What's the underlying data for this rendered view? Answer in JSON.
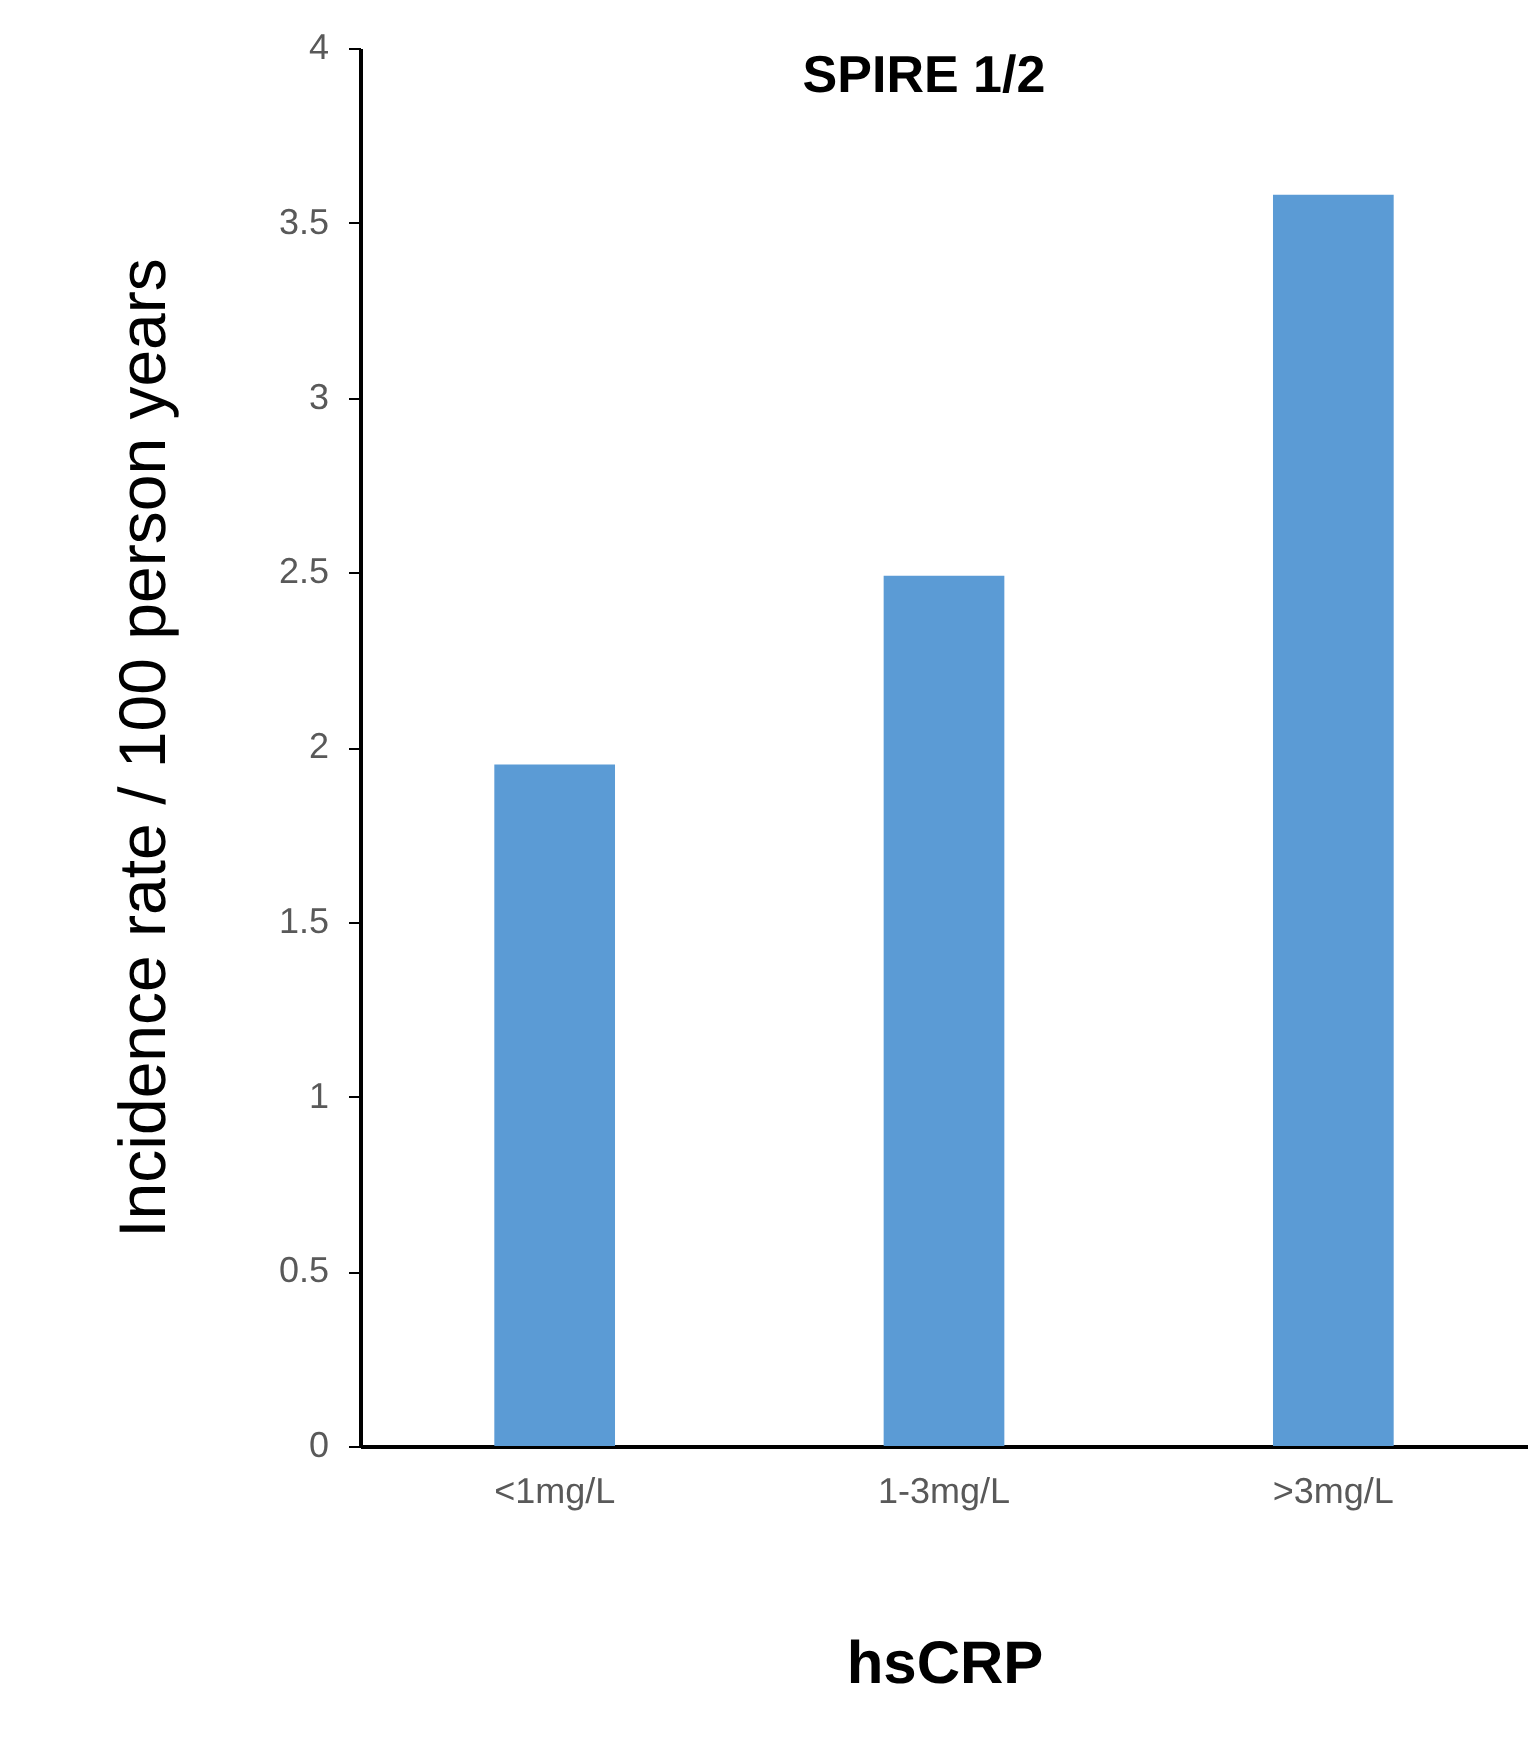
{
  "chart_data": {
    "type": "bar",
    "title": "SPIRE 1/2",
    "xlabel": "hsCRP",
    "ylabel": "Incidence rate / 100 person years",
    "categories": [
      "<1mg/L",
      "1-3mg/L",
      ">3mg/L"
    ],
    "values": [
      1.95,
      2.49,
      3.58
    ],
    "color": "#5b9bd5",
    "ylim": [
      0,
      4
    ],
    "yticks": [
      0,
      0.5,
      1,
      1.5,
      2,
      2.5,
      3,
      3.5,
      4
    ],
    "grid": false
  }
}
